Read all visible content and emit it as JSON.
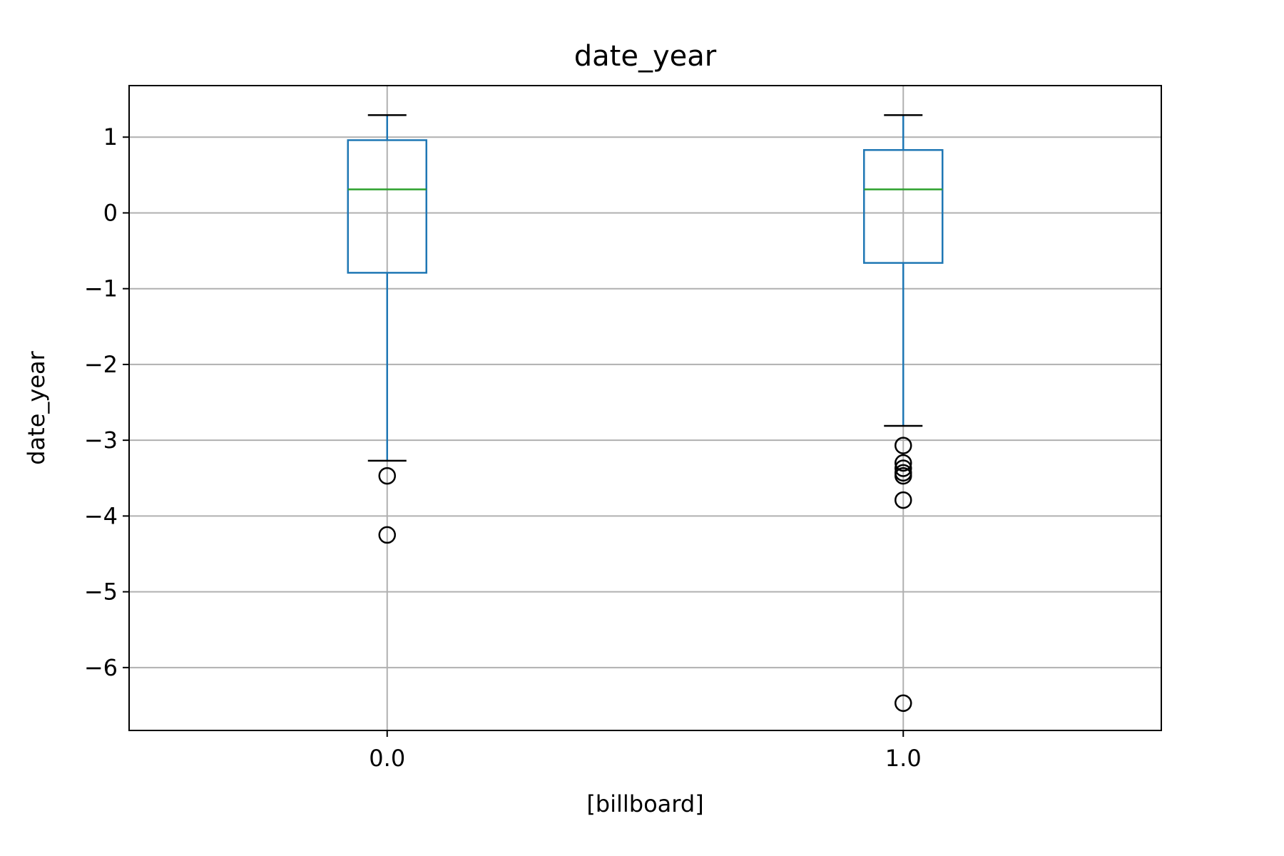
{
  "chart_data": {
    "type": "box",
    "title": "date_year",
    "xlabel": "[billboard]",
    "ylabel": "date_year",
    "categories": [
      "0.0",
      "1.0"
    ],
    "ylim": [
      -6.83,
      1.68
    ],
    "yticks": [
      1,
      0,
      -1,
      -2,
      -3,
      -4,
      -5,
      -6
    ],
    "ytick_labels": [
      "1",
      "0",
      "−1",
      "−2",
      "−3",
      "−4",
      "−5",
      "−6"
    ],
    "grid": true,
    "boxes": [
      {
        "category": "0.0",
        "whisker_low": -3.27,
        "q1": -0.79,
        "median": 0.31,
        "q3": 0.96,
        "whisker_high": 1.29,
        "outliers": [
          -3.47,
          -4.25
        ]
      },
      {
        "category": "1.0",
        "whisker_low": -2.81,
        "q1": -0.66,
        "median": 0.31,
        "q3": 0.83,
        "whisker_high": 1.29,
        "outliers": [
          -3.07,
          -3.3,
          -3.37,
          -3.43,
          -3.47,
          -3.79,
          -6.47
        ]
      }
    ],
    "colors": {
      "box": "#1f77b4",
      "median": "#2ca02c",
      "cap": "#000000",
      "grid": "#b0b0b0",
      "outlier": "#000000"
    }
  }
}
